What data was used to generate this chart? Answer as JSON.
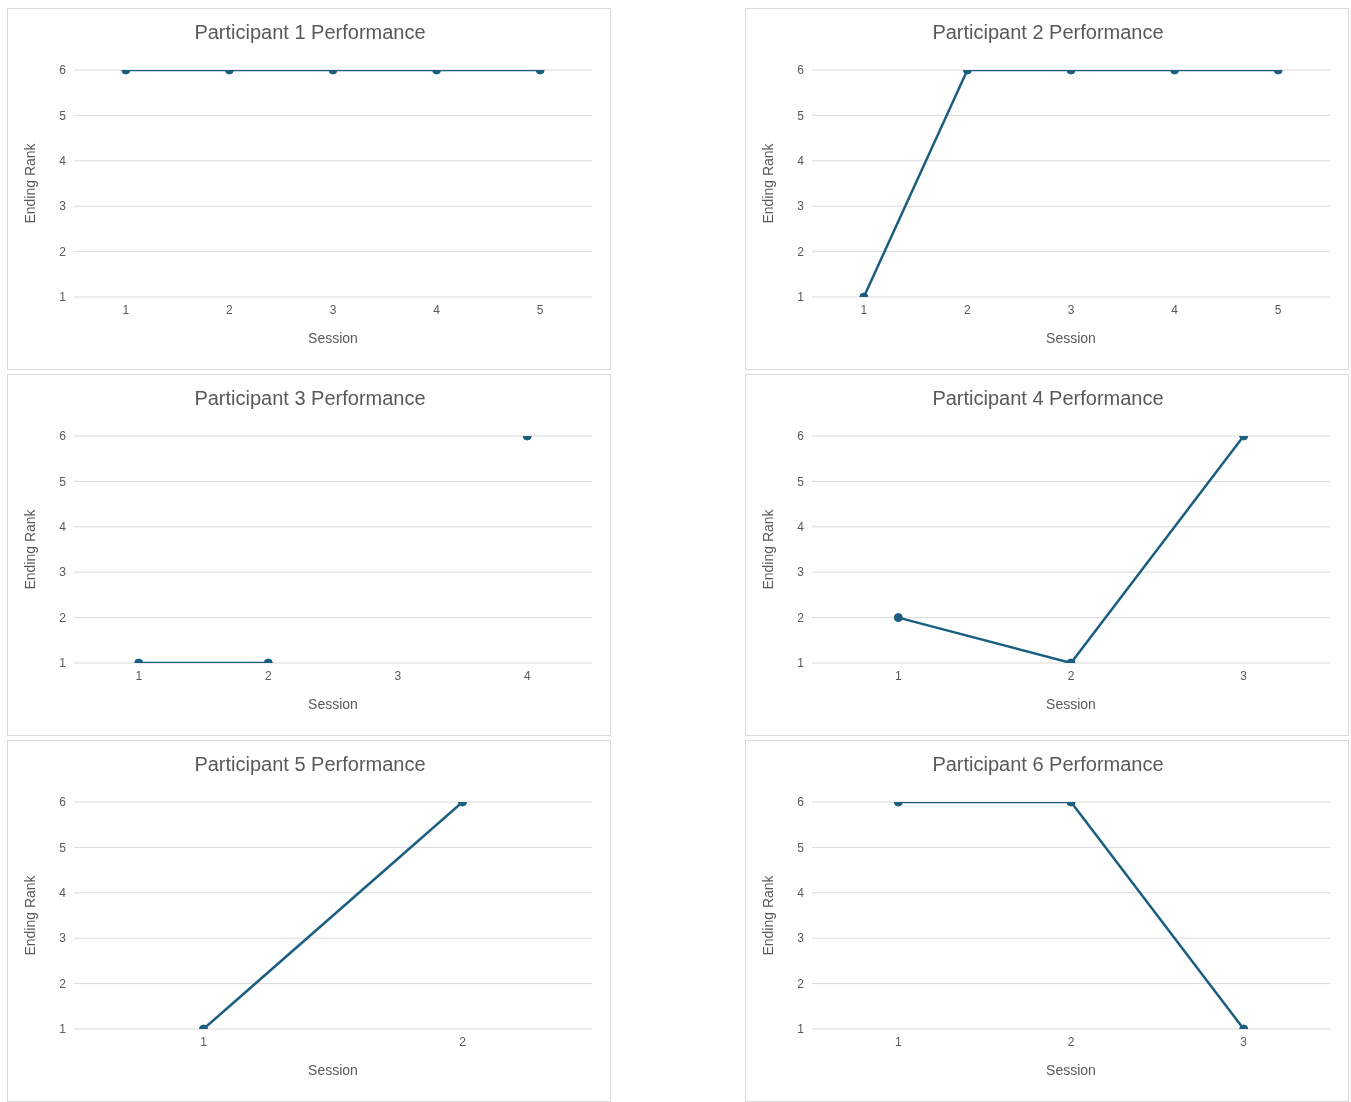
{
  "chart_data": [
    {
      "type": "line",
      "title": "Participant 1 Performance",
      "xlabel": "Session",
      "ylabel": "Ending Rank",
      "categories": [
        "1",
        "2",
        "3",
        "4",
        "5"
      ],
      "values": [
        6,
        6,
        6,
        6,
        6
      ],
      "color": "#1b5e80",
      "ylim": [
        1,
        6
      ],
      "yticks": [
        1,
        2,
        3,
        4,
        5,
        6
      ],
      "grid": "y",
      "marker": "circle"
    },
    {
      "type": "line",
      "title": "Participant 2 Performance",
      "xlabel": "Session",
      "ylabel": "Ending Rank",
      "categories": [
        "1",
        "2",
        "3",
        "4",
        "5"
      ],
      "values": [
        1,
        6,
        6,
        6,
        6
      ],
      "color": "#1b5e80",
      "ylim": [
        1,
        6
      ],
      "yticks": [
        1,
        2,
        3,
        4,
        5,
        6
      ],
      "grid": "y",
      "marker": "circle"
    },
    {
      "type": "line",
      "title": "Participant 3 Performance",
      "xlabel": "Session",
      "ylabel": "Ending Rank",
      "categories": [
        "1",
        "2",
        "3",
        "4"
      ],
      "values": [
        1,
        1,
        null,
        6
      ],
      "color": "#1b5e80",
      "ylim": [
        1,
        6
      ],
      "yticks": [
        1,
        2,
        3,
        4,
        5,
        6
      ],
      "grid": "y",
      "marker": "circle"
    },
    {
      "type": "line",
      "title": "Participant 4 Performance",
      "xlabel": "Session",
      "ylabel": "Ending Rank",
      "categories": [
        "1",
        "2",
        "3"
      ],
      "values": [
        2,
        1,
        6
      ],
      "color": "#1b5e80",
      "ylim": [
        1,
        6
      ],
      "yticks": [
        1,
        2,
        3,
        4,
        5,
        6
      ],
      "grid": "y",
      "marker": "circle"
    },
    {
      "type": "line",
      "title": "Participant 5 Performance",
      "xlabel": "Session",
      "ylabel": "Ending Rank",
      "categories": [
        "1",
        "2"
      ],
      "values": [
        1,
        6
      ],
      "color": "#1b5e80",
      "ylim": [
        1,
        6
      ],
      "yticks": [
        1,
        2,
        3,
        4,
        5,
        6
      ],
      "grid": "y",
      "marker": "circle"
    },
    {
      "type": "line",
      "title": "Participant 6 Performance",
      "xlabel": "Session",
      "ylabel": "Ending Rank",
      "categories": [
        "1",
        "2",
        "3"
      ],
      "values": [
        6,
        6,
        1
      ],
      "color": "#1b5e80",
      "ylim": [
        1,
        6
      ],
      "yticks": [
        1,
        2,
        3,
        4,
        5,
        6
      ],
      "grid": "y",
      "marker": "circle"
    }
  ]
}
